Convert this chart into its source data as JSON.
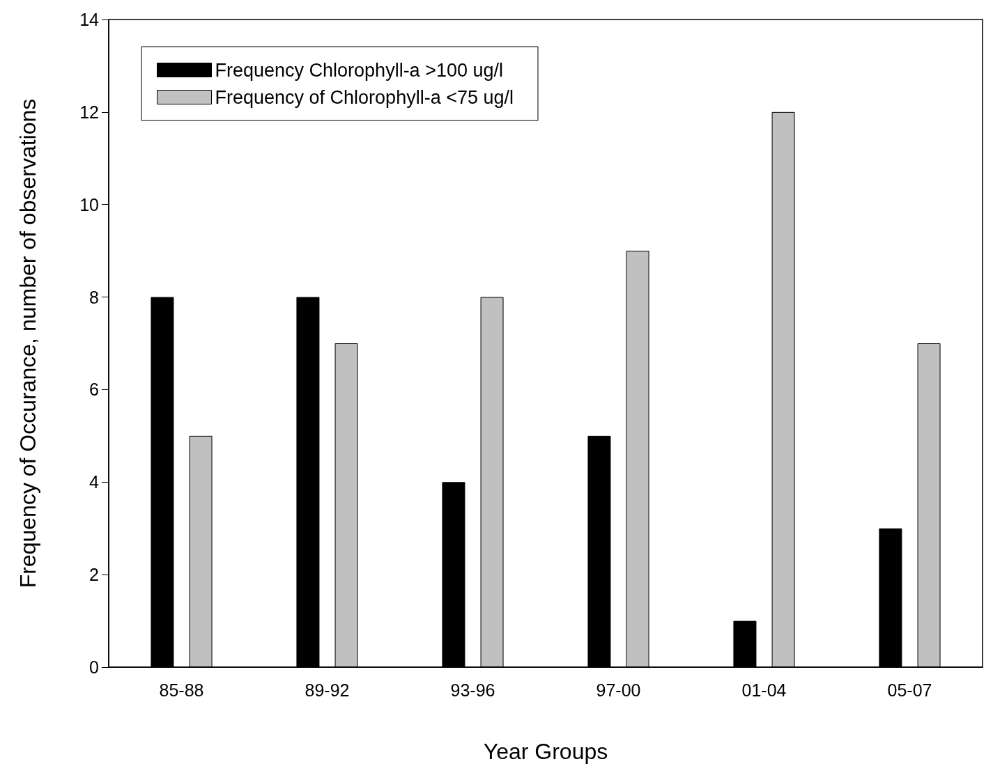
{
  "chart_data": {
    "type": "bar",
    "xlabel": "Year Groups",
    "ylabel": "Frequency of Occurance, number of observations",
    "categories": [
      "85-88",
      "89-92",
      "93-96",
      "97-00",
      "01-04",
      "05-07"
    ],
    "series": [
      {
        "name": "Frequency Chlorophyll-a >100 ug/l",
        "color": "#000000",
        "values": [
          8,
          8,
          4,
          5,
          1,
          3
        ]
      },
      {
        "name": "Frequency of Chlorophyll-a <75 ug/l",
        "color": "#c0c0c0",
        "values": [
          5,
          7,
          8,
          9,
          12,
          7
        ]
      }
    ],
    "ylim": [
      0,
      14
    ],
    "yticks": [
      0,
      2,
      4,
      6,
      8,
      10,
      12,
      14
    ],
    "grid": false,
    "legend": "top left"
  }
}
